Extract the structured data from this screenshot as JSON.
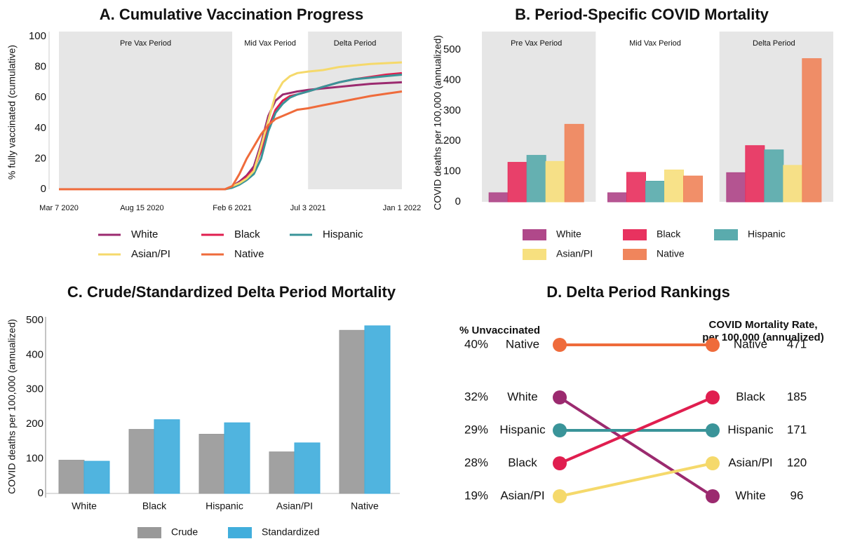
{
  "chart_data": [
    {
      "type": "line",
      "title": "A. Cumulative Vaccination Progress",
      "ylabel": "% fully vaccinated (cumulative)",
      "x": [
        "2020-03-07",
        "2021-01-23",
        "2021-02-06",
        "2021-02-20",
        "2021-03-06",
        "2021-03-20",
        "2021-04-03",
        "2021-04-17",
        "2021-05-01",
        "2021-05-15",
        "2021-05-29",
        "2021-06-12",
        "2021-07-03",
        "2021-08-01",
        "2021-09-01",
        "2021-10-01",
        "2021-11-01",
        "2021-12-01",
        "2022-01-01"
      ],
      "series": [
        {
          "name": "White",
          "color": "#9b2a6f",
          "values": [
            0,
            0,
            2,
            5,
            9,
            15,
            30,
            48,
            58,
            62,
            63,
            64,
            65,
            66,
            67,
            68,
            69,
            69.5,
            70
          ]
        },
        {
          "name": "Black",
          "color": "#e01e4f",
          "values": [
            0,
            0,
            1.5,
            4,
            8,
            13,
            25,
            40,
            52,
            58,
            61,
            62,
            64,
            67,
            70,
            72,
            73.5,
            75,
            76
          ]
        },
        {
          "name": "Hispanic",
          "color": "#3a9499",
          "values": [
            0,
            0,
            1,
            3,
            6,
            10,
            20,
            38,
            50,
            56,
            60,
            62,
            64,
            67,
            70,
            72,
            73,
            74,
            75
          ]
        },
        {
          "name": "Asian/PI",
          "color": "#f5d96b",
          "values": [
            0,
            0,
            2,
            4,
            7,
            12,
            28,
            45,
            62,
            70,
            74,
            76,
            77,
            78,
            80,
            81,
            82,
            82.5,
            83
          ]
        },
        {
          "name": "Native",
          "color": "#ef6b3b",
          "values": [
            0,
            0,
            2,
            10,
            20,
            28,
            36,
            42,
            46,
            48,
            50,
            52,
            53,
            55,
            57,
            59,
            61,
            62.5,
            64
          ]
        }
      ],
      "periods": [
        {
          "label": "Pre Vax Period",
          "start": "2020-03-07",
          "end": "2021-02-06",
          "shaded": true
        },
        {
          "label": "Mid Vax Period",
          "start": "2021-02-06",
          "end": "2021-07-03",
          "shaded": false
        },
        {
          "label": "Delta Period",
          "start": "2021-07-03",
          "end": "2022-01-01",
          "shaded": true
        }
      ],
      "shade_color": "#e6e6e6",
      "xlim": [
        "2020-03-07",
        "2022-01-01"
      ],
      "xticks": [
        {
          "value": "2020-03-07",
          "label": "Mar 7 2020"
        },
        {
          "value": "2020-08-15",
          "label": "Aug 15 2020"
        },
        {
          "value": "2021-02-06",
          "label": "Feb 6 2021"
        },
        {
          "value": "2021-07-03",
          "label": "Jul 3 2021"
        },
        {
          "value": "2022-01-01",
          "label": "Jan 1 2022"
        }
      ],
      "ylim": [
        0,
        100
      ],
      "yticks": [
        0,
        20,
        40,
        60,
        80,
        100
      ]
    },
    {
      "type": "bar",
      "title": "B. Period-Specific COVID Mortality",
      "ylabel": "COVID deaths per 100,000 (annualized)",
      "categories": [
        "Pre Vax Period",
        "Mid Vax Period",
        "Delta Period"
      ],
      "shaded": [
        true,
        false,
        true
      ],
      "shade_color": "#e6e6e6",
      "series": [
        {
          "name": "White",
          "color": "#b0488a",
          "values": [
            30,
            30,
            96
          ]
        },
        {
          "name": "Black",
          "color": "#e8325f",
          "values": [
            130,
            97,
            185
          ]
        },
        {
          "name": "Hispanic",
          "color": "#5aabad",
          "values": [
            153,
            68,
            171
          ]
        },
        {
          "name": "Asian/PI",
          "color": "#f7e07f",
          "values": [
            133,
            105,
            120
          ]
        },
        {
          "name": "Native",
          "color": "#f0855c",
          "values": [
            255,
            85,
            471
          ]
        }
      ],
      "ylim": [
        0,
        560
      ],
      "yticks": [
        0,
        100,
        200,
        300,
        400,
        500
      ]
    },
    {
      "type": "bar",
      "title": "C. Crude/Standardized Delta Period Mortality",
      "ylabel": "COVID deaths per 100,000 (annualized)",
      "categories": [
        "White",
        "Black",
        "Hispanic",
        "Asian/PI",
        "Native"
      ],
      "series": [
        {
          "name": "Crude",
          "color": "#999999",
          "values": [
            96,
            185,
            171,
            120,
            471
          ]
        },
        {
          "name": "Standardized",
          "color": "#41aedc",
          "values": [
            93,
            213,
            204,
            146,
            484
          ]
        }
      ],
      "ylim": [
        0,
        510
      ],
      "yticks": [
        0,
        100,
        200,
        300,
        400,
        500
      ]
    },
    {
      "type": "slope",
      "title": "D. Delta Period Rankings",
      "left_title": "% Unvaccinated",
      "right_title": [
        "COVID Mortality Rate,",
        "per 100,000 (annualized)"
      ],
      "left": {
        "categories": [
          "Native",
          "White",
          "Hispanic",
          "Black",
          "Asian/PI"
        ],
        "values": [
          40,
          32,
          29,
          28,
          19
        ],
        "value_labels": [
          "40%",
          "32%",
          "29%",
          "28%",
          "19%"
        ],
        "colors": [
          "#ef6b3b",
          "#9b2a6f",
          "#3a9499",
          "#e01e4f",
          "#f5d96b"
        ]
      },
      "right": {
        "categories": [
          "Native",
          "Black",
          "Hispanic",
          "Asian/PI",
          "White"
        ],
        "values": [
          471,
          185,
          171,
          120,
          96
        ]
      }
    }
  ]
}
